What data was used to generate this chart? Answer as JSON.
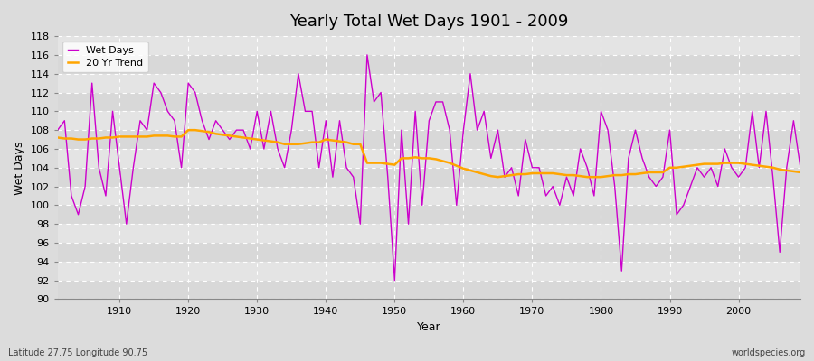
{
  "title": "Yearly Total Wet Days 1901 - 2009",
  "xlabel": "Year",
  "ylabel": "Wet Days",
  "xlim": [
    1901,
    2009
  ],
  "ylim": [
    90,
    118
  ],
  "yticks": [
    90,
    92,
    94,
    96,
    98,
    100,
    102,
    104,
    106,
    108,
    110,
    112,
    114,
    116,
    118
  ],
  "xticks": [
    1910,
    1920,
    1930,
    1940,
    1950,
    1960,
    1970,
    1980,
    1990,
    2000
  ],
  "wet_days_color": "#cc00cc",
  "trend_color": "#ffa500",
  "background_color": "#e8e8e8",
  "band_color_light": "#e0e0e0",
  "band_color_dark": "#d0d0d0",
  "grid_color": "#ffffff",
  "legend_wet": "Wet Days",
  "legend_trend": "20 Yr Trend",
  "footer_left": "Latitude 27.75 Longitude 90.75",
  "footer_right": "worldspecies.org",
  "years": [
    1901,
    1902,
    1903,
    1904,
    1905,
    1906,
    1907,
    1908,
    1909,
    1910,
    1911,
    1912,
    1913,
    1914,
    1915,
    1916,
    1917,
    1918,
    1919,
    1920,
    1921,
    1922,
    1923,
    1924,
    1925,
    1926,
    1927,
    1928,
    1929,
    1930,
    1931,
    1932,
    1933,
    1934,
    1935,
    1936,
    1937,
    1938,
    1939,
    1940,
    1941,
    1942,
    1943,
    1944,
    1945,
    1946,
    1947,
    1948,
    1949,
    1950,
    1951,
    1952,
    1953,
    1954,
    1955,
    1956,
    1957,
    1958,
    1959,
    1960,
    1961,
    1962,
    1963,
    1964,
    1965,
    1966,
    1967,
    1968,
    1969,
    1970,
    1971,
    1972,
    1973,
    1974,
    1975,
    1976,
    1977,
    1978,
    1979,
    1980,
    1981,
    1982,
    1983,
    1984,
    1985,
    1986,
    1987,
    1988,
    1989,
    1990,
    1991,
    1992,
    1993,
    1994,
    1995,
    1996,
    1997,
    1998,
    1999,
    2000,
    2001,
    2002,
    2003,
    2004,
    2005,
    2006,
    2007,
    2008,
    2009
  ],
  "wet_days": [
    108,
    109,
    101,
    99,
    102,
    113,
    104,
    101,
    110,
    104,
    98,
    104,
    109,
    108,
    113,
    112,
    110,
    109,
    104,
    113,
    112,
    109,
    107,
    109,
    108,
    107,
    108,
    108,
    106,
    110,
    106,
    110,
    106,
    104,
    108,
    114,
    110,
    110,
    104,
    109,
    103,
    109,
    104,
    103,
    98,
    116,
    111,
    112,
    103,
    92,
    108,
    98,
    110,
    100,
    109,
    111,
    111,
    108,
    100,
    108,
    114,
    108,
    110,
    105,
    108,
    103,
    104,
    101,
    107,
    104,
    104,
    101,
    102,
    100,
    103,
    101,
    106,
    104,
    101,
    110,
    108,
    102,
    93,
    105,
    108,
    105,
    103,
    102,
    103,
    108,
    99,
    100,
    102,
    104,
    103,
    104,
    102,
    106,
    104,
    103,
    104,
    110,
    104,
    110,
    103,
    95,
    104,
    109,
    104
  ],
  "trend": [
    107.2,
    107.1,
    107.1,
    107.0,
    107.0,
    107.1,
    107.1,
    107.2,
    107.2,
    107.3,
    107.3,
    107.3,
    107.3,
    107.3,
    107.4,
    107.4,
    107.4,
    107.3,
    107.3,
    108.0,
    108.0,
    107.9,
    107.8,
    107.6,
    107.5,
    107.4,
    107.3,
    107.2,
    107.1,
    107.0,
    106.9,
    106.8,
    106.7,
    106.5,
    106.5,
    106.5,
    106.6,
    106.7,
    106.7,
    107.0,
    106.9,
    106.8,
    106.7,
    106.5,
    106.5,
    104.5,
    104.5,
    104.5,
    104.4,
    104.3,
    105.0,
    105.0,
    105.1,
    105.0,
    105.0,
    104.9,
    104.7,
    104.5,
    104.2,
    103.9,
    103.7,
    103.5,
    103.3,
    103.1,
    103.0,
    103.1,
    103.2,
    103.3,
    103.3,
    103.4,
    103.4,
    103.4,
    103.4,
    103.3,
    103.2,
    103.2,
    103.1,
    103.0,
    103.0,
    103.0,
    103.1,
    103.2,
    103.2,
    103.3,
    103.3,
    103.4,
    103.5,
    103.5,
    103.5,
    104.0,
    104.0,
    104.1,
    104.2,
    104.3,
    104.4,
    104.4,
    104.4,
    104.5,
    104.5,
    104.5,
    104.4,
    104.3,
    104.2,
    104.1,
    104.0,
    103.8,
    103.7,
    103.6,
    103.5
  ]
}
